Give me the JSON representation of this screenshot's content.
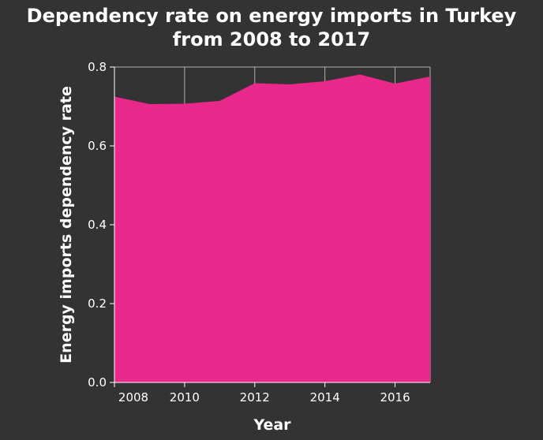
{
  "colors": {
    "background": "#333333",
    "area_fill": "#e8288a",
    "text": "#ffffff",
    "grid": "#b0b0b0"
  },
  "chart_data": {
    "type": "area",
    "title_lines": [
      "Dependency rate on energy imports in Turkey",
      "from 2008 to 2017"
    ],
    "xlabel": "Year",
    "ylabel": "Energy imports dependency rate",
    "x": [
      2008,
      2009,
      2010,
      2011,
      2012,
      2013,
      2014,
      2015,
      2016,
      2017
    ],
    "series": [
      {
        "values": [
          0.725,
          0.706,
          0.707,
          0.714,
          0.759,
          0.756,
          0.764,
          0.781,
          0.758,
          0.776
        ]
      }
    ],
    "xlim": [
      2008,
      2017
    ],
    "ylim": [
      0,
      0.8
    ],
    "xticks": [
      2008,
      2010,
      2012,
      2014,
      2016
    ],
    "xtick_labels": [
      "2008",
      "2010",
      "2012",
      "2014",
      "2016"
    ],
    "yticks": [
      0,
      0.2,
      0.4,
      0.6,
      0.8
    ],
    "ytick_labels": [
      "0.0",
      "0.2",
      "0.4",
      "0.6",
      "0.8"
    ],
    "grid": true,
    "legend": false
  }
}
